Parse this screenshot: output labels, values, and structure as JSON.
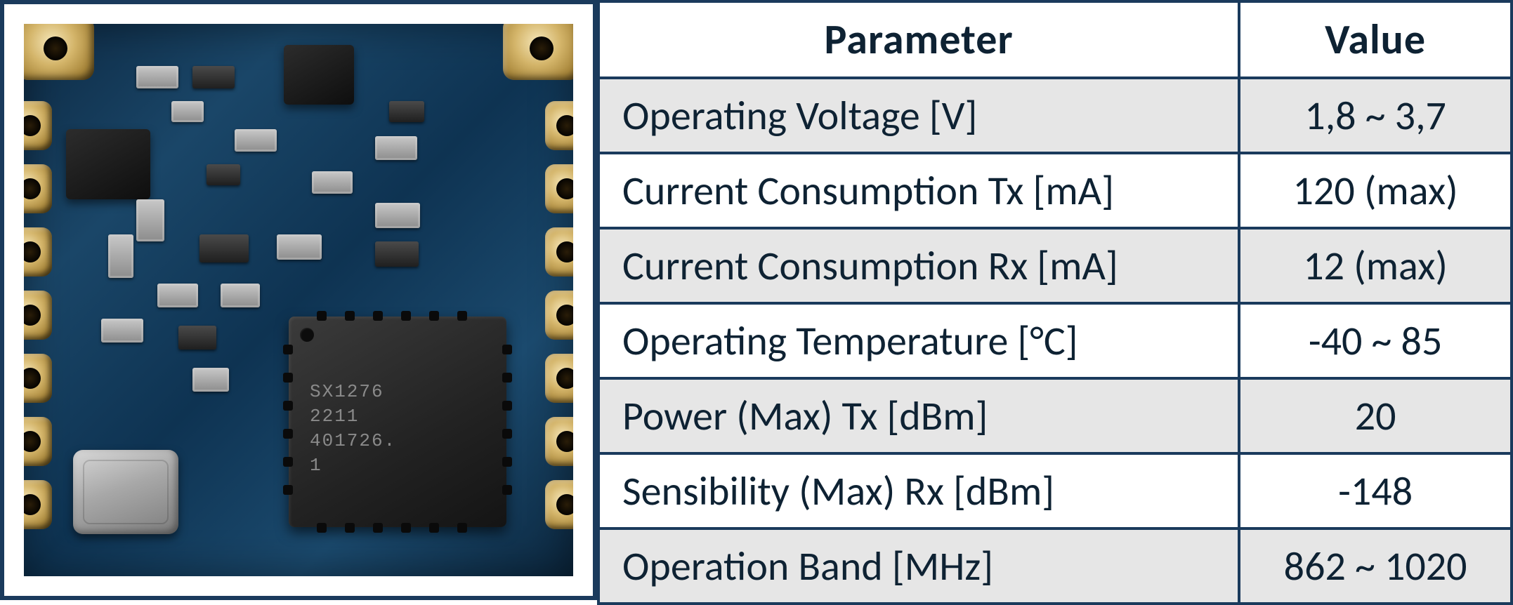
{
  "image_panel": {
    "chip_label_lines": [
      "SX1276",
      "2211",
      "401726.",
      "1"
    ],
    "pcb_base_color": "#123a58",
    "pad_gold_color": "#d4b56a",
    "chip_body_color": "#222222",
    "crystal_color": "#a8a8a8",
    "frame_border_color": "#1a3a5c"
  },
  "table": {
    "header": {
      "parameter": "Parameter",
      "value": "Value"
    },
    "header_font_weight": 700,
    "font_family": "Calibri",
    "font_size_pt": 44,
    "text_color": "#0e2233",
    "border_color": "#1a3a5c",
    "stripe_color": "#e6e6e6",
    "plain_color": "#ffffff",
    "rows": [
      {
        "parameter": "Operating Voltage [V]",
        "value": "1,8 ~ 3,7",
        "stripe": true
      },
      {
        "parameter": "Current Consumption Tx [mA]",
        "value": "120 (max)",
        "stripe": false
      },
      {
        "parameter": "Current Consumption Rx [mA]",
        "value": "12 (max)",
        "stripe": true
      },
      {
        "parameter": "Operating Temperature [°C]",
        "value": "-40 ~ 85",
        "stripe": false
      },
      {
        "parameter": "Power (Max) Tx [dBm]",
        "value": "20",
        "stripe": true
      },
      {
        "parameter": "Sensibility (Max) Rx [dBm]",
        "value": "-148",
        "stripe": false
      },
      {
        "parameter": "Operation Band [MHz]",
        "value": "862 ~ 1020",
        "stripe": true
      }
    ]
  }
}
